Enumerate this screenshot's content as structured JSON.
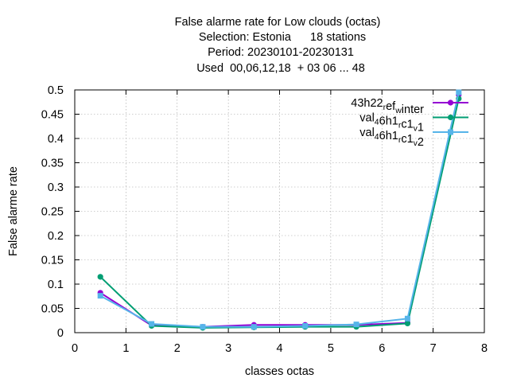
{
  "chart_data": {
    "type": "line",
    "title_lines": [
      "False alarme rate  for Low clouds (octas)",
      "Selection: Estonia      18 stations",
      "Period: 20230101-20230131",
      "Used  00,06,12,18  + 03 06 ... 48"
    ],
    "xlabel": "classes octas",
    "ylabel": "False alarme rate",
    "xlim": [
      0,
      8
    ],
    "ylim": [
      0,
      0.5
    ],
    "x_ticks": [
      "0",
      "1",
      "2",
      "3",
      "4",
      "5",
      "6",
      "7",
      "8"
    ],
    "y_ticks": [
      "0",
      "0.05",
      "0.1",
      "0.15",
      "0.2",
      "0.25",
      "0.3",
      "0.35",
      "0.4",
      "0.45",
      "0.5"
    ],
    "grid": true,
    "legend_position": "top-right",
    "series": [
      {
        "name": "43h22_ref_winter",
        "legend_parts": [
          [
            "43h22",
            "n"
          ],
          [
            "r",
            "sub"
          ],
          [
            "ef",
            "n"
          ],
          [
            "w",
            "sub"
          ],
          [
            "inter",
            "n"
          ]
        ],
        "color": "#9400d3",
        "marker": "circle",
        "x": [
          0.5,
          1.5,
          2.5,
          3.5,
          4.5,
          5.5,
          6.5,
          7.5
        ],
        "y": [
          0.082,
          0.015,
          0.012,
          0.016,
          0.016,
          0.016,
          0.02,
          0.49
        ]
      },
      {
        "name": "val_46h1_rc1_v1",
        "legend_parts": [
          [
            "val",
            "n"
          ],
          [
            "4",
            "sub"
          ],
          [
            "6h1",
            "n"
          ],
          [
            "r",
            "sub"
          ],
          [
            "c1",
            "n"
          ],
          [
            "v",
            "sub"
          ],
          [
            "1",
            "n"
          ]
        ],
        "color": "#009e73",
        "marker": "circle",
        "x": [
          0.5,
          1.5,
          2.5,
          3.5,
          4.5,
          5.5,
          6.5,
          7.5
        ],
        "y": [
          0.115,
          0.014,
          0.01,
          0.011,
          0.012,
          0.012,
          0.019,
          0.482
        ]
      },
      {
        "name": "val_46h1_rc1_v2",
        "legend_parts": [
          [
            "val",
            "n"
          ],
          [
            "4",
            "sub"
          ],
          [
            "6h1",
            "n"
          ],
          [
            "r",
            "sub"
          ],
          [
            "c1",
            "n"
          ],
          [
            "v",
            "sub"
          ],
          [
            "2",
            "n"
          ]
        ],
        "color": "#56b4e9",
        "marker": "square",
        "x": [
          0.5,
          1.5,
          2.5,
          3.5,
          4.5,
          5.5,
          6.5,
          7.5
        ],
        "y": [
          0.076,
          0.018,
          0.012,
          0.012,
          0.014,
          0.017,
          0.029,
          0.495
        ]
      }
    ]
  }
}
